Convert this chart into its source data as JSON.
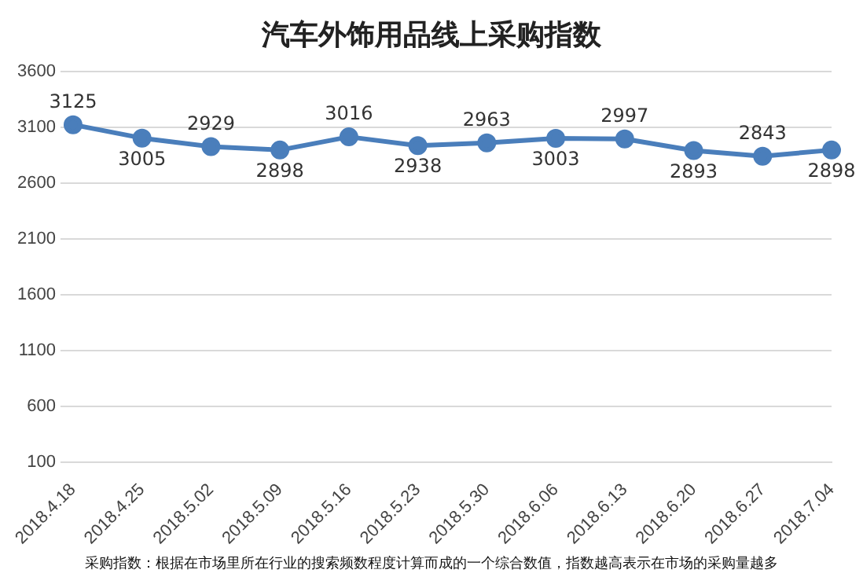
{
  "chart_data": {
    "type": "line",
    "title": "汽车外饰用品线上采购指数",
    "categories": [
      "2018.4.18",
      "2018.4.25",
      "2018.5.02",
      "2018.5.09",
      "2018.5.16",
      "2018.5.23",
      "2018.5.30",
      "2018.6.06",
      "2018.6.13",
      "2018.6.20",
      "2018.6.27",
      "2018.7.04"
    ],
    "series": [
      {
        "color": "#4a7ebb",
        "values": [
          3125,
          3005,
          2929,
          2898,
          3016,
          2938,
          2963,
          3003,
          2997,
          2893,
          2843,
          2898
        ]
      }
    ],
    "ylim": [
      100,
      3600
    ],
    "yticks": [
      100,
      600,
      1100,
      1600,
      2100,
      2600,
      3100,
      3600
    ],
    "grid": "y",
    "legend": false,
    "marker": "circle",
    "line_style": "solid",
    "data_labels": true,
    "annotations": [
      "采购指数：根据在市场里所在行业的搜索频数程度计算而成的一个综合数值，指数越高表示在市场的采购量越多"
    ]
  }
}
